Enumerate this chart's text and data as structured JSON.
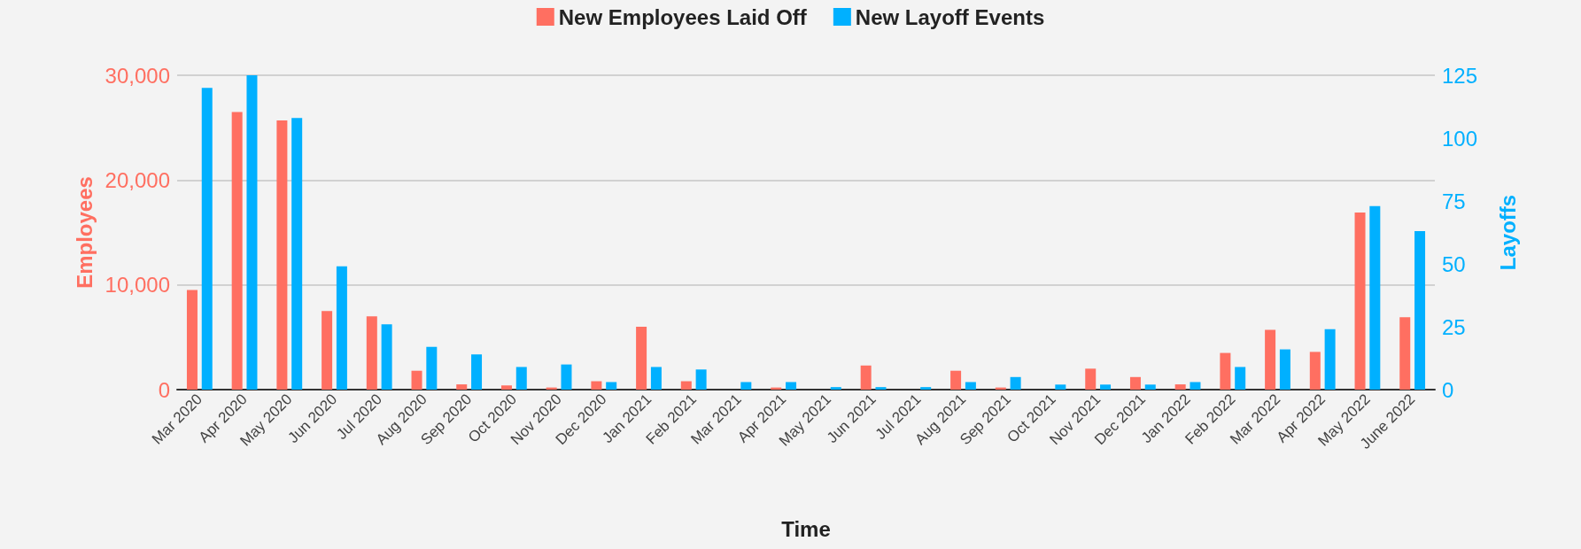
{
  "chart_data": {
    "type": "bar",
    "xlabel": "Time",
    "ylabel": "Employees",
    "y2label": "Layoffs",
    "categories": [
      "Mar 2020",
      "Apr 2020",
      "May 2020",
      "Jun 2020",
      "Jul 2020",
      "Aug 2020",
      "Sep 2020",
      "Oct 2020",
      "Nov 2020",
      "Dec 2020",
      "Jan 2021",
      "Feb 2021",
      "Mar 2021",
      "Apr 2021",
      "May 2021",
      "Jun 2021",
      "Jul 2021",
      "Aug 2021",
      "Sep 2021",
      "Oct 2021",
      "Nov 2021",
      "Dec 2021",
      "Jan 2022",
      "Feb 2022",
      "Mar 2022",
      "Apr 2022",
      "May 2022",
      "June 2022"
    ],
    "series": [
      {
        "name": "New Employees Laid Off",
        "color": "#ff6f61",
        "values": [
          9500,
          26500,
          25700,
          7500,
          7000,
          1800,
          500,
          400,
          200,
          800,
          6000,
          800,
          0,
          200,
          0,
          2300,
          0,
          1800,
          200,
          0,
          2000,
          1200,
          500,
          3500,
          5700,
          3600,
          16900,
          6900
        ]
      },
      {
        "name": "New Layoff Events",
        "color": "#00b0ff",
        "axis": "y2",
        "values": [
          120,
          125,
          108,
          49,
          26,
          17,
          14,
          9,
          10,
          3,
          9,
          8,
          3,
          3,
          1,
          1,
          1,
          3,
          5,
          2,
          2,
          2,
          3,
          9,
          16,
          24,
          73,
          63
        ]
      }
    ],
    "ylim": [
      0,
      30000
    ],
    "yticks": [
      0,
      {
        "value": 10000,
        "label": "10,000"
      },
      {
        "value": 20000,
        "label": "20,000"
      },
      {
        "value": 30000,
        "label": "30,000"
      }
    ],
    "y2lim": [
      0,
      125
    ],
    "y2ticks": [
      0,
      25,
      50,
      75,
      100,
      125
    ],
    "grid": "y",
    "legend": "top"
  }
}
